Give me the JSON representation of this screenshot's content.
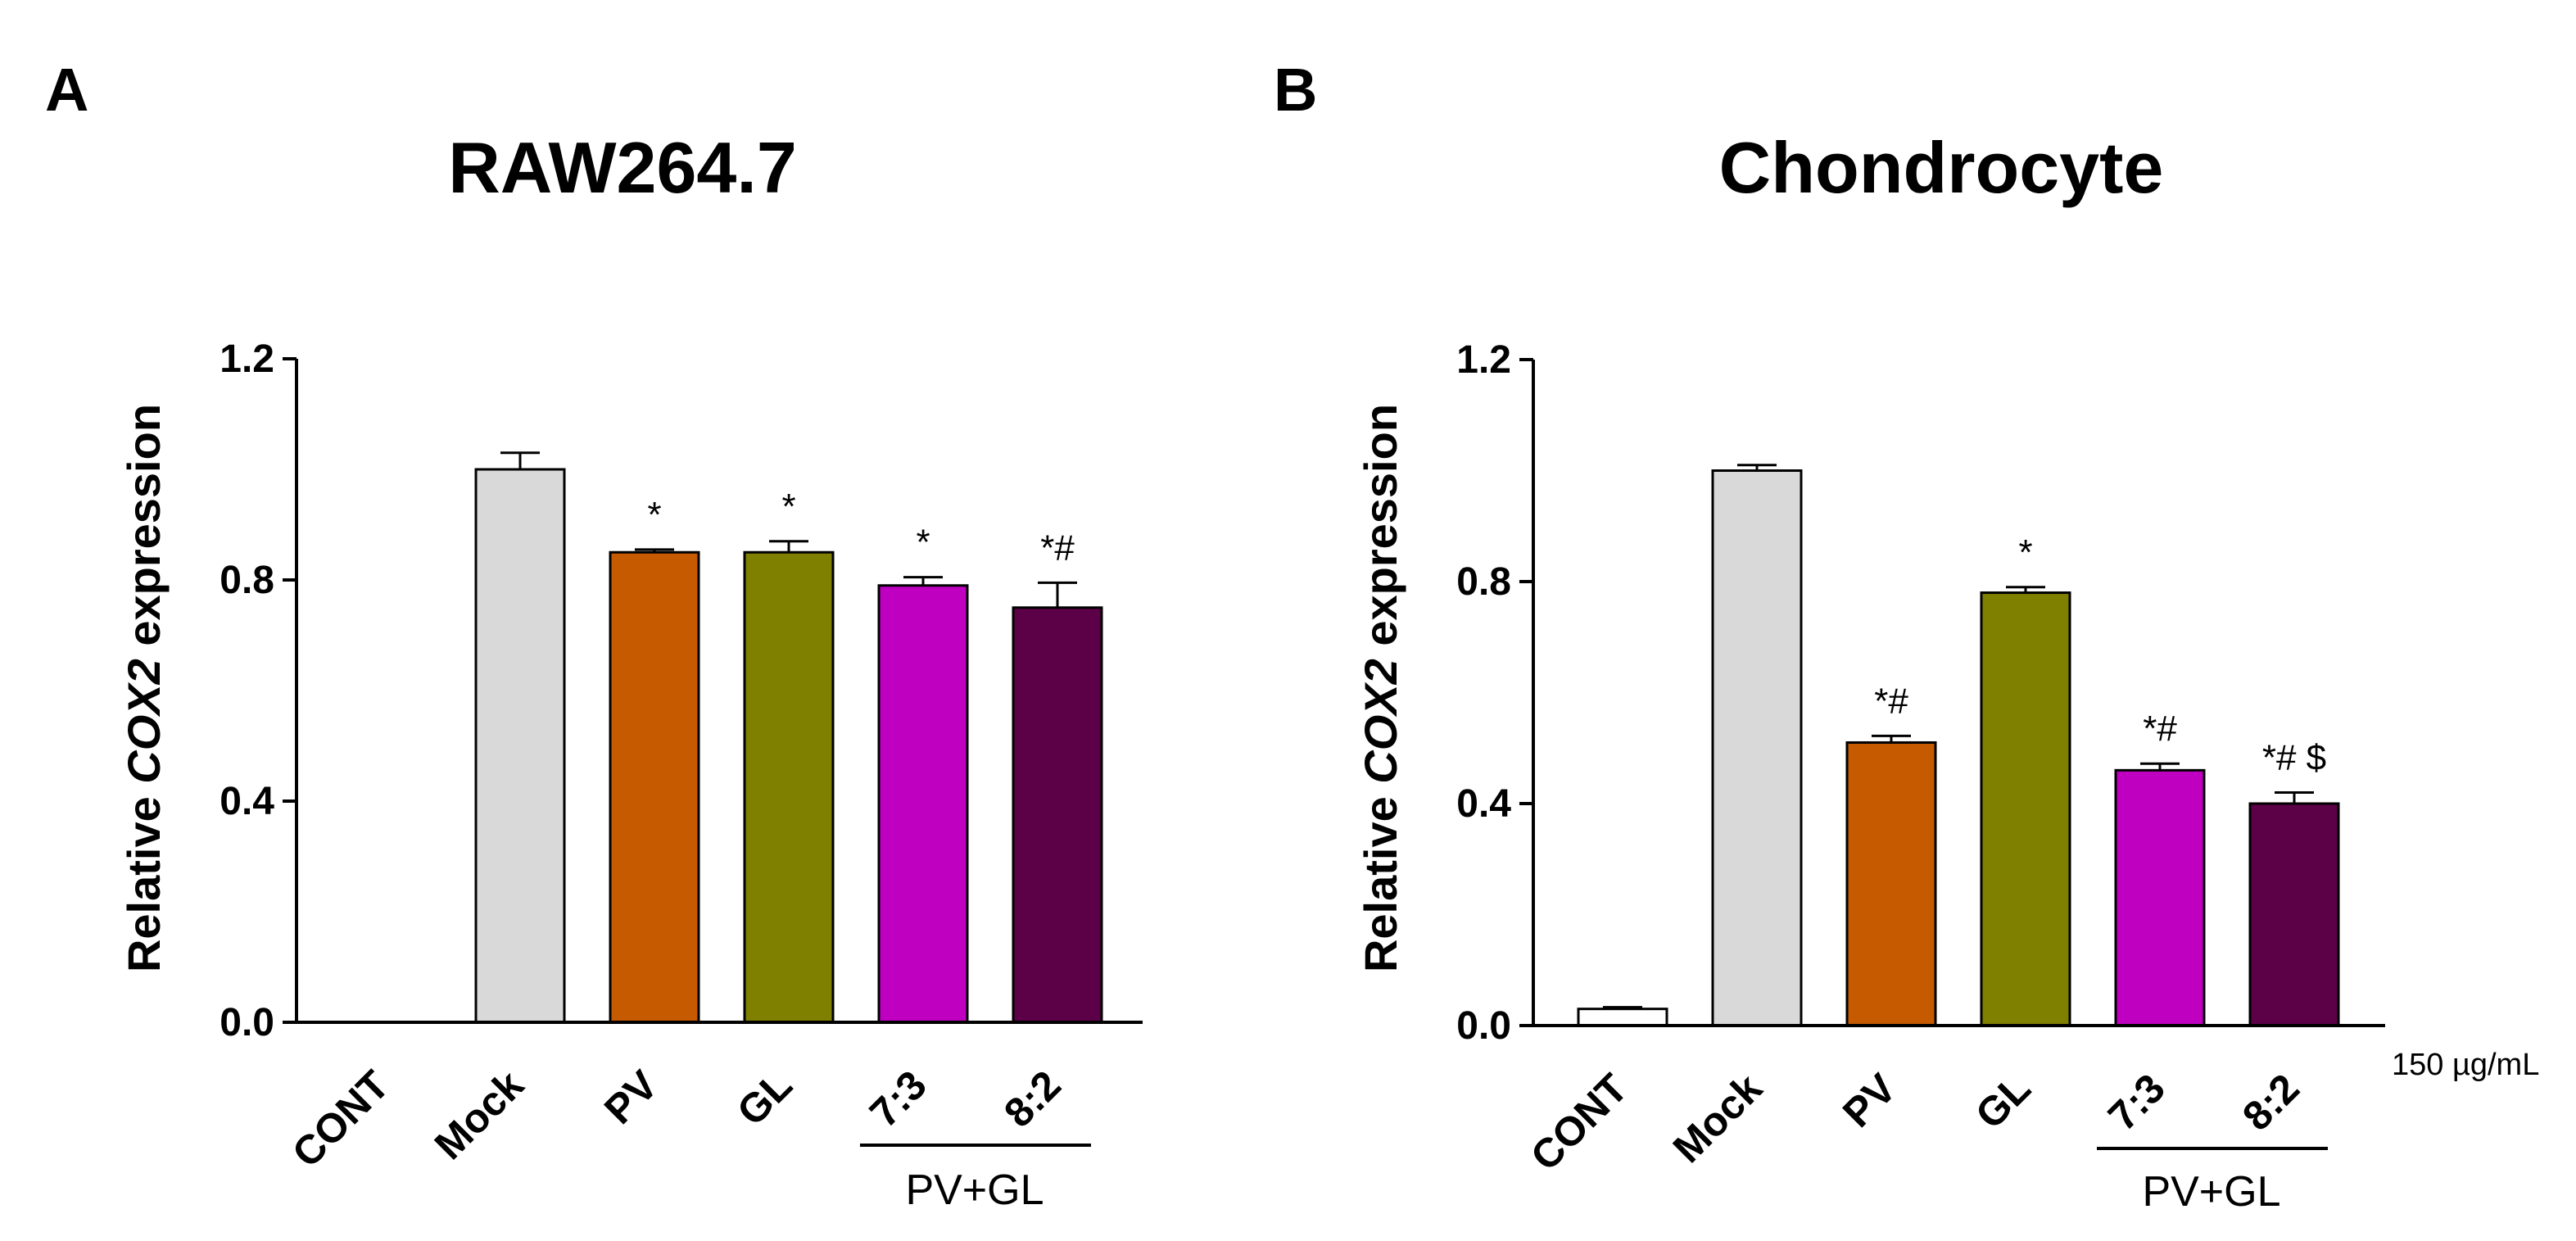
{
  "figure": {
    "group_label": "PV+GL",
    "unit_label": "150 µg/mL"
  },
  "chart_data": [
    {
      "type": "bar",
      "panel": "A",
      "title": "RAW264.7",
      "ylabel": "Relative COX2 expression",
      "ylabel_parts": {
        "pre": "Relative ",
        "italic": "COX2",
        "post": " expression"
      },
      "ylim": [
        0,
        1.2
      ],
      "yticks": [
        "0.0",
        "0.4",
        "0.8",
        "1.2"
      ],
      "categories": [
        "CONT",
        "Mock",
        "PV",
        "GL",
        "7:3",
        "8:2"
      ],
      "values": [
        0,
        1.0,
        0.85,
        0.85,
        0.79,
        0.75
      ],
      "errors": [
        0,
        0.03,
        0.005,
        0.02,
        0.015,
        0.045
      ],
      "colors": [
        "#ffffff",
        "#d9d9d9",
        "#c55a00",
        "#7f7f00",
        "#c000c0",
        "#5c0048"
      ],
      "significance": [
        "",
        "",
        "*",
        "*",
        "*",
        "*#"
      ]
    },
    {
      "type": "bar",
      "panel": "B",
      "title": "Chondrocyte",
      "ylabel": "Relative COX2 expression",
      "ylabel_parts": {
        "pre": "Relative ",
        "italic": "COX2",
        "post": " expression"
      },
      "ylim": [
        0,
        1.2
      ],
      "yticks": [
        "0.0",
        "0.4",
        "0.8",
        "1.2"
      ],
      "categories": [
        "CONT",
        "Mock",
        "PV",
        "GL",
        "7:3",
        "8:2"
      ],
      "values": [
        0.03,
        1.0,
        0.51,
        0.78,
        0.46,
        0.4
      ],
      "errors": [
        0.003,
        0.01,
        0.012,
        0.01,
        0.012,
        0.02
      ],
      "colors": [
        "#ffffff",
        "#d9d9d9",
        "#c55a00",
        "#7f7f00",
        "#c000c0",
        "#5c0048"
      ],
      "significance": [
        "",
        "",
        "*#",
        "*",
        "*#",
        "*# $"
      ]
    }
  ]
}
